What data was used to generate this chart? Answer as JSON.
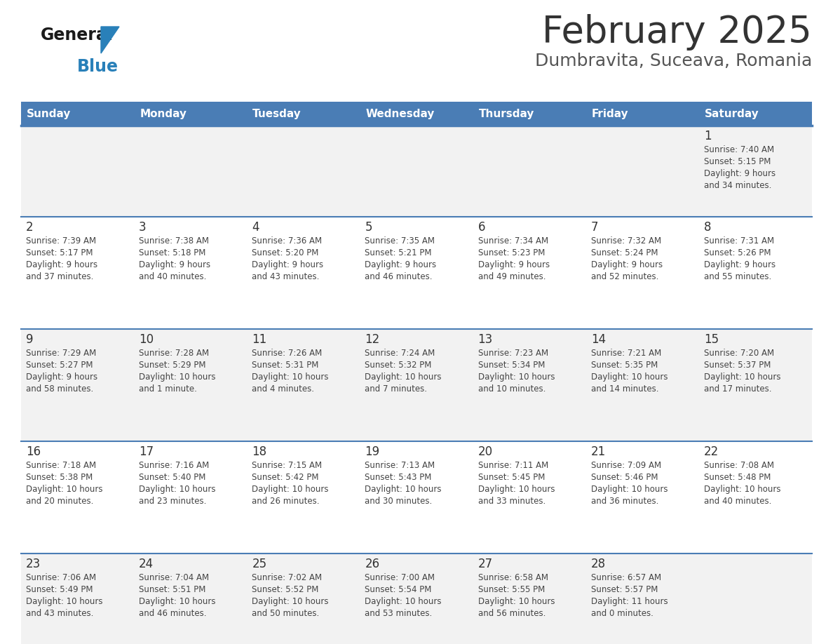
{
  "title": "February 2025",
  "subtitle": "Dumbravita, Suceava, Romania",
  "days_of_week": [
    "Sunday",
    "Monday",
    "Tuesday",
    "Wednesday",
    "Thursday",
    "Friday",
    "Saturday"
  ],
  "header_bg": "#4a7db5",
  "header_text": "#ffffff",
  "row_bg_light": "#f2f2f2",
  "row_bg_white": "#ffffff",
  "divider_color": "#4a7db5",
  "day_number_color": "#333333",
  "cell_text_color": "#444444",
  "logo_text_color": "#1a1a1a",
  "logo_blue_color": "#2980b9",
  "title_color": "#333333",
  "subtitle_color": "#555555",
  "calendar_data": [
    {
      "day": 1,
      "col": 6,
      "row": 0,
      "sunrise": "7:40 AM",
      "sunset": "5:15 PM",
      "daylight_hours": 9,
      "daylight_minutes": 34
    },
    {
      "day": 2,
      "col": 0,
      "row": 1,
      "sunrise": "7:39 AM",
      "sunset": "5:17 PM",
      "daylight_hours": 9,
      "daylight_minutes": 37
    },
    {
      "day": 3,
      "col": 1,
      "row": 1,
      "sunrise": "7:38 AM",
      "sunset": "5:18 PM",
      "daylight_hours": 9,
      "daylight_minutes": 40
    },
    {
      "day": 4,
      "col": 2,
      "row": 1,
      "sunrise": "7:36 AM",
      "sunset": "5:20 PM",
      "daylight_hours": 9,
      "daylight_minutes": 43
    },
    {
      "day": 5,
      "col": 3,
      "row": 1,
      "sunrise": "7:35 AM",
      "sunset": "5:21 PM",
      "daylight_hours": 9,
      "daylight_minutes": 46
    },
    {
      "day": 6,
      "col": 4,
      "row": 1,
      "sunrise": "7:34 AM",
      "sunset": "5:23 PM",
      "daylight_hours": 9,
      "daylight_minutes": 49
    },
    {
      "day": 7,
      "col": 5,
      "row": 1,
      "sunrise": "7:32 AM",
      "sunset": "5:24 PM",
      "daylight_hours": 9,
      "daylight_minutes": 52
    },
    {
      "day": 8,
      "col": 6,
      "row": 1,
      "sunrise": "7:31 AM",
      "sunset": "5:26 PM",
      "daylight_hours": 9,
      "daylight_minutes": 55
    },
    {
      "day": 9,
      "col": 0,
      "row": 2,
      "sunrise": "7:29 AM",
      "sunset": "5:27 PM",
      "daylight_hours": 9,
      "daylight_minutes": 58
    },
    {
      "day": 10,
      "col": 1,
      "row": 2,
      "sunrise": "7:28 AM",
      "sunset": "5:29 PM",
      "daylight_hours": 10,
      "daylight_minutes": 1
    },
    {
      "day": 11,
      "col": 2,
      "row": 2,
      "sunrise": "7:26 AM",
      "sunset": "5:31 PM",
      "daylight_hours": 10,
      "daylight_minutes": 4
    },
    {
      "day": 12,
      "col": 3,
      "row": 2,
      "sunrise": "7:24 AM",
      "sunset": "5:32 PM",
      "daylight_hours": 10,
      "daylight_minutes": 7
    },
    {
      "day": 13,
      "col": 4,
      "row": 2,
      "sunrise": "7:23 AM",
      "sunset": "5:34 PM",
      "daylight_hours": 10,
      "daylight_minutes": 10
    },
    {
      "day": 14,
      "col": 5,
      "row": 2,
      "sunrise": "7:21 AM",
      "sunset": "5:35 PM",
      "daylight_hours": 10,
      "daylight_minutes": 14
    },
    {
      "day": 15,
      "col": 6,
      "row": 2,
      "sunrise": "7:20 AM",
      "sunset": "5:37 PM",
      "daylight_hours": 10,
      "daylight_minutes": 17
    },
    {
      "day": 16,
      "col": 0,
      "row": 3,
      "sunrise": "7:18 AM",
      "sunset": "5:38 PM",
      "daylight_hours": 10,
      "daylight_minutes": 20
    },
    {
      "day": 17,
      "col": 1,
      "row": 3,
      "sunrise": "7:16 AM",
      "sunset": "5:40 PM",
      "daylight_hours": 10,
      "daylight_minutes": 23
    },
    {
      "day": 18,
      "col": 2,
      "row": 3,
      "sunrise": "7:15 AM",
      "sunset": "5:42 PM",
      "daylight_hours": 10,
      "daylight_minutes": 26
    },
    {
      "day": 19,
      "col": 3,
      "row": 3,
      "sunrise": "7:13 AM",
      "sunset": "5:43 PM",
      "daylight_hours": 10,
      "daylight_minutes": 30
    },
    {
      "day": 20,
      "col": 4,
      "row": 3,
      "sunrise": "7:11 AM",
      "sunset": "5:45 PM",
      "daylight_hours": 10,
      "daylight_minutes": 33
    },
    {
      "day": 21,
      "col": 5,
      "row": 3,
      "sunrise": "7:09 AM",
      "sunset": "5:46 PM",
      "daylight_hours": 10,
      "daylight_minutes": 36
    },
    {
      "day": 22,
      "col": 6,
      "row": 3,
      "sunrise": "7:08 AM",
      "sunset": "5:48 PM",
      "daylight_hours": 10,
      "daylight_minutes": 40
    },
    {
      "day": 23,
      "col": 0,
      "row": 4,
      "sunrise": "7:06 AM",
      "sunset": "5:49 PM",
      "daylight_hours": 10,
      "daylight_minutes": 43
    },
    {
      "day": 24,
      "col": 1,
      "row": 4,
      "sunrise": "7:04 AM",
      "sunset": "5:51 PM",
      "daylight_hours": 10,
      "daylight_minutes": 46
    },
    {
      "day": 25,
      "col": 2,
      "row": 4,
      "sunrise": "7:02 AM",
      "sunset": "5:52 PM",
      "daylight_hours": 10,
      "daylight_minutes": 50
    },
    {
      "day": 26,
      "col": 3,
      "row": 4,
      "sunrise": "7:00 AM",
      "sunset": "5:54 PM",
      "daylight_hours": 10,
      "daylight_minutes": 53
    },
    {
      "day": 27,
      "col": 4,
      "row": 4,
      "sunrise": "6:58 AM",
      "sunset": "5:55 PM",
      "daylight_hours": 10,
      "daylight_minutes": 56
    },
    {
      "day": 28,
      "col": 5,
      "row": 4,
      "sunrise": "6:57 AM",
      "sunset": "5:57 PM",
      "daylight_hours": 11,
      "daylight_minutes": 0
    }
  ]
}
